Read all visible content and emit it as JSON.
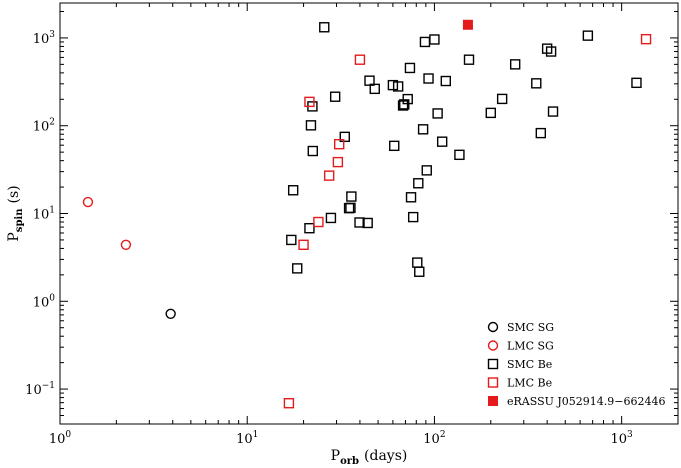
{
  "chart_data": {
    "type": "scatter",
    "title": "",
    "xlabel": {
      "main": "P",
      "sub": "orb",
      "unit": "(days)"
    },
    "ylabel": {
      "main": "P",
      "sub": "spin",
      "unit": "(s)"
    },
    "xscale": "log",
    "yscale": "log",
    "xlim": [
      1,
      2000
    ],
    "ylim": [
      0.04,
      2500
    ],
    "grid": false,
    "legend_position": "bottom-right",
    "x_ticks": [
      {
        "value": 1,
        "label": "10",
        "sup": "0"
      },
      {
        "value": 10,
        "label": "10",
        "sup": "1"
      },
      {
        "value": 100,
        "label": "10",
        "sup": "2"
      },
      {
        "value": 1000,
        "label": "10",
        "sup": "3"
      }
    ],
    "y_ticks": [
      {
        "value": 0.1,
        "label": "10",
        "sup": "−1"
      },
      {
        "value": 1,
        "label": "10",
        "sup": "0"
      },
      {
        "value": 10,
        "label": "10",
        "sup": "1"
      },
      {
        "value": 100,
        "label": "10",
        "sup": "2"
      },
      {
        "value": 1000,
        "label": "10",
        "sup": "3"
      }
    ],
    "series": [
      {
        "name": "SMC SG",
        "marker": "circle-open",
        "color": "#000000",
        "points": [
          [
            3.9,
            0.72
          ]
        ]
      },
      {
        "name": "LMC SG",
        "marker": "circle-open",
        "color": "#e41a1c",
        "points": [
          [
            1.41,
            13.5
          ],
          [
            2.25,
            4.4
          ]
        ]
      },
      {
        "name": "SMC Be",
        "marker": "square-open",
        "color": "#000000",
        "points": [
          [
            17.2,
            5.0
          ],
          [
            17.6,
            18.4
          ],
          [
            18.5,
            2.37
          ],
          [
            21.5,
            6.8
          ],
          [
            21.9,
            101
          ],
          [
            22.3,
            166
          ],
          [
            22.4,
            51.5
          ],
          [
            25.8,
            1323
          ],
          [
            28.0,
            8.9
          ],
          [
            29.5,
            214
          ],
          [
            33.2,
            74.7
          ],
          [
            35.0,
            11.5
          ],
          [
            35.6,
            11.6
          ],
          [
            36.0,
            15.6
          ],
          [
            39.8,
            7.9
          ],
          [
            44.0,
            7.8
          ],
          [
            45.0,
            326
          ],
          [
            48.0,
            263
          ],
          [
            60.0,
            290
          ],
          [
            61.0,
            59.0
          ],
          [
            64.0,
            280
          ],
          [
            68.0,
            170
          ],
          [
            69.0,
            175
          ],
          [
            72.0,
            201
          ],
          [
            74.0,
            455
          ],
          [
            75.0,
            15.3
          ],
          [
            77.0,
            9.1
          ],
          [
            81.0,
            2.76
          ],
          [
            82.0,
            22.1
          ],
          [
            83.0,
            2.17
          ],
          [
            87.0,
            91
          ],
          [
            89.0,
            900
          ],
          [
            91.0,
            31.0
          ],
          [
            93.0,
            345
          ],
          [
            100.0,
            960
          ],
          [
            104.0,
            138
          ],
          [
            110.0,
            65.8
          ],
          [
            115.0,
            323
          ],
          [
            136.0,
            46.6
          ],
          [
            153.0,
            565
          ],
          [
            200.0,
            140
          ],
          [
            230.0,
            202
          ],
          [
            270.0,
            500
          ],
          [
            350.0,
            304
          ],
          [
            370.0,
            82.4
          ],
          [
            400.0,
            755
          ],
          [
            420.0,
            700
          ],
          [
            430.0,
            145
          ],
          [
            660.0,
            1062
          ],
          [
            1200.0,
            308
          ]
        ]
      },
      {
        "name": "LMC Be",
        "marker": "square-open",
        "color": "#e41a1c",
        "points": [
          [
            16.7,
            0.069
          ],
          [
            20.0,
            4.4
          ],
          [
            21.5,
            187
          ],
          [
            24.0,
            8.0
          ],
          [
            27.4,
            27.0
          ],
          [
            30.5,
            38.5
          ],
          [
            31.0,
            61.6
          ],
          [
            40.0,
            565
          ],
          [
            1350.0,
            968
          ]
        ]
      },
      {
        "name": "eRASSU J052914.9−662446",
        "marker": "square-filled",
        "color": "#e41a1c",
        "points": [
          [
            151.0,
            1412
          ]
        ]
      }
    ]
  }
}
